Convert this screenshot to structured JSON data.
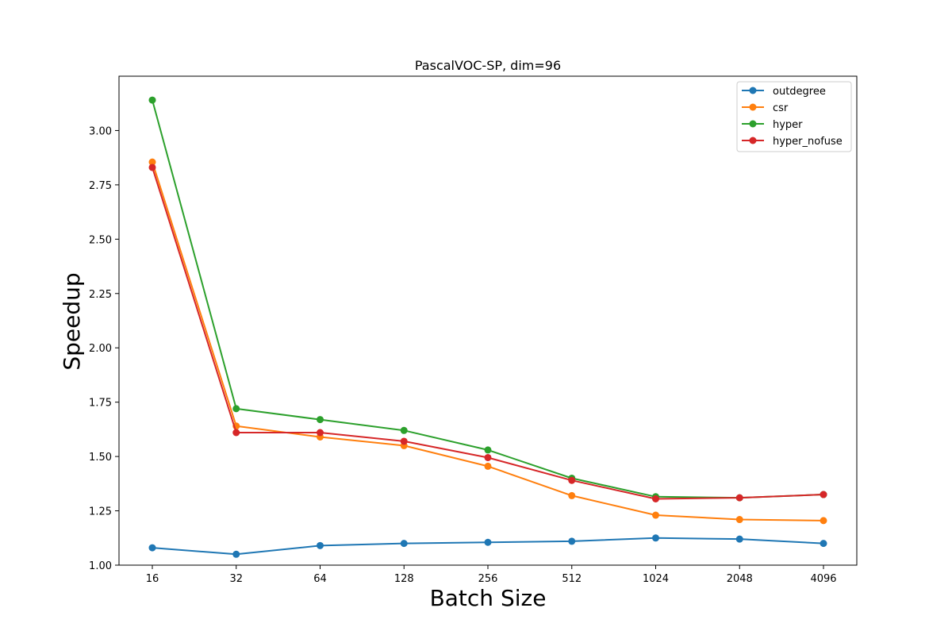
{
  "chart_data": {
    "type": "line",
    "title": "PascalVOC-SP, dim=96",
    "xlabel": "Batch Size",
    "ylabel": "Speedup",
    "categories": [
      "16",
      "32",
      "64",
      "128",
      "256",
      "512",
      "1024",
      "2048",
      "4096"
    ],
    "ylim": [
      1.0,
      3.25
    ],
    "yticks": [
      "1.00",
      "1.25",
      "1.50",
      "1.75",
      "2.00",
      "2.25",
      "2.50",
      "2.75",
      "3.00"
    ],
    "grid": false,
    "legend_position": "top-right",
    "series": [
      {
        "name": "outdegree",
        "color": "#1f77b4",
        "values": [
          1.08,
          1.05,
          1.09,
          1.1,
          1.105,
          1.11,
          1.125,
          1.12,
          1.1
        ]
      },
      {
        "name": "csr",
        "color": "#ff7f0e",
        "values": [
          2.855,
          1.64,
          1.59,
          1.55,
          1.455,
          1.32,
          1.23,
          1.21,
          1.205
        ]
      },
      {
        "name": "hyper",
        "color": "#2ca02c",
        "values": [
          3.14,
          1.72,
          1.67,
          1.62,
          1.53,
          1.4,
          1.315,
          1.31,
          1.325
        ]
      },
      {
        "name": "hyper_nofuse",
        "color": "#d62728",
        "values": [
          2.83,
          1.61,
          1.61,
          1.57,
          1.495,
          1.39,
          1.305,
          1.31,
          1.325
        ]
      }
    ]
  }
}
